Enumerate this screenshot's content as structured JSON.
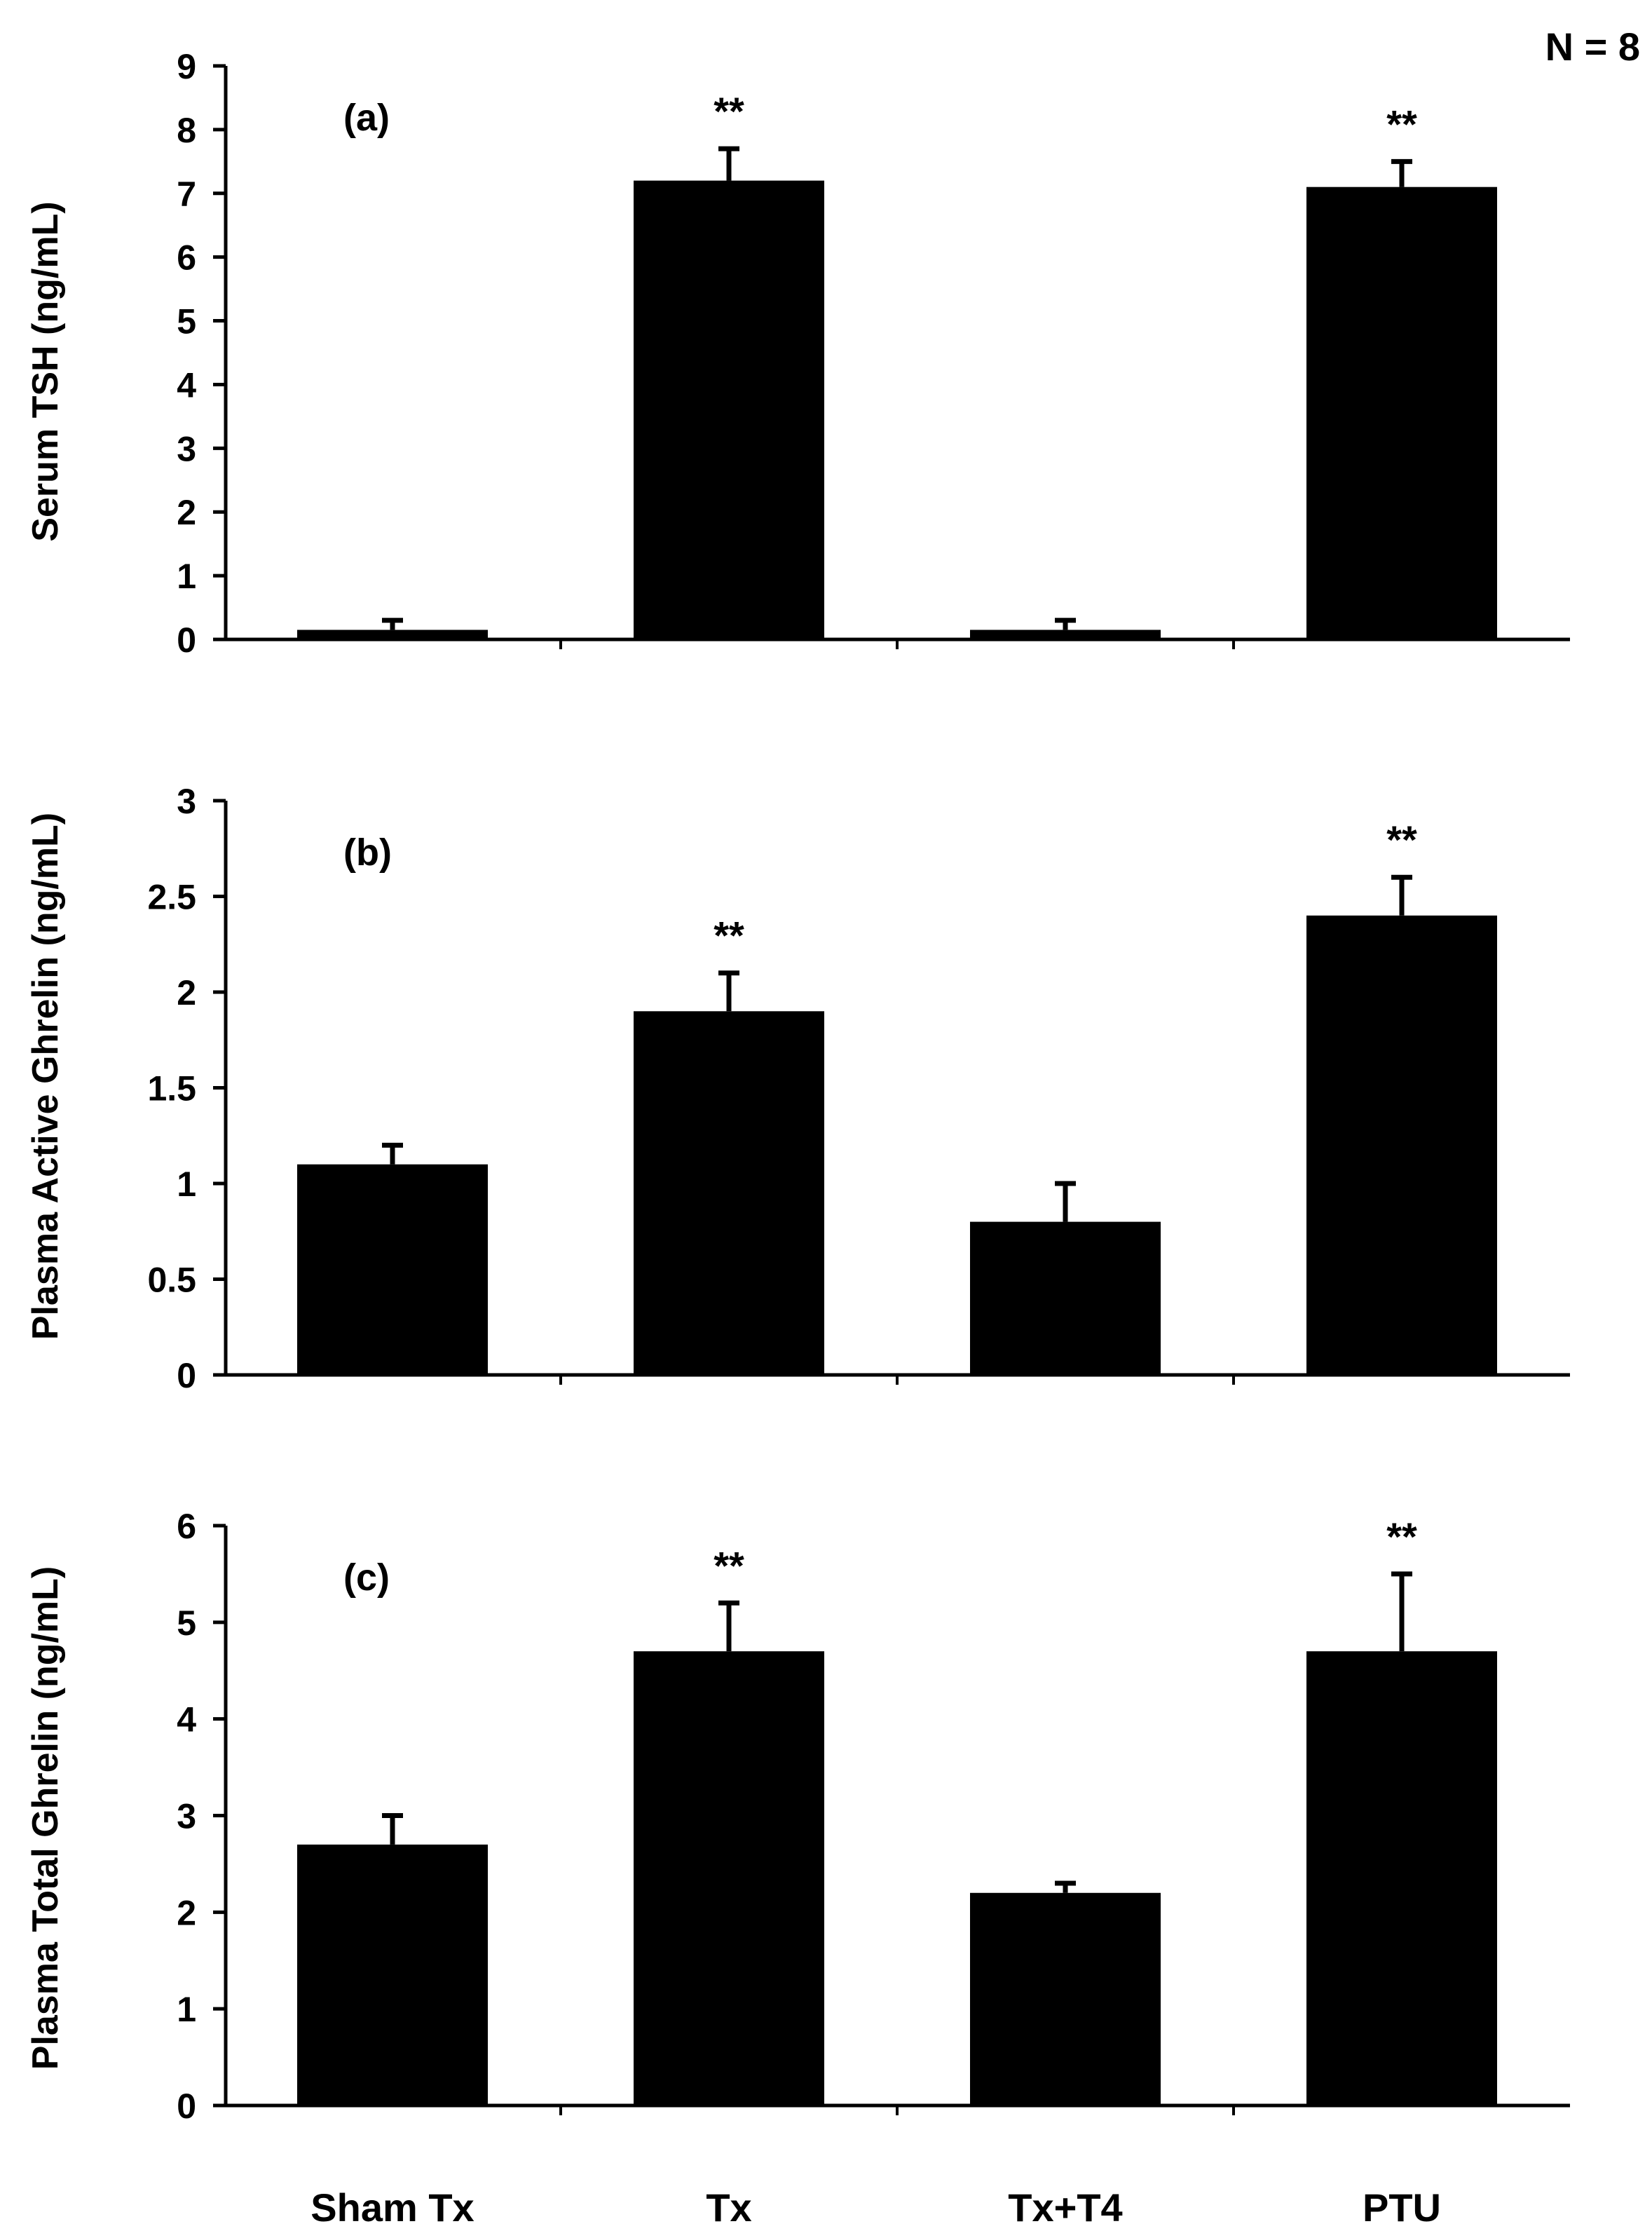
{
  "figure": {
    "n_label": "N = 8",
    "categories": [
      "Sham Tx",
      "Tx",
      "Tx+T4",
      "PTU"
    ]
  },
  "chart_data": [
    {
      "type": "bar",
      "panel": "(a)",
      "ylabel": "Serum TSH (ng/mL)",
      "ylim": [
        0,
        9
      ],
      "yticks": [
        0,
        1,
        2,
        3,
        4,
        5,
        6,
        7,
        8,
        9
      ],
      "ytick_labels": [
        "0",
        "1",
        "2",
        "3",
        "4",
        "5",
        "6",
        "7",
        "8",
        "9"
      ],
      "categories": [
        "Sham Tx",
        "Tx",
        "Tx+T4",
        "PTU"
      ],
      "values": [
        0.15,
        7.2,
        0.15,
        7.1
      ],
      "errors": [
        0.15,
        0.5,
        0.15,
        0.4
      ],
      "significance": [
        "",
        "**",
        "",
        "**"
      ]
    },
    {
      "type": "bar",
      "panel": "(b)",
      "ylabel": "Plasma Active Ghrelin (ng/mL)",
      "ylim": [
        0,
        3
      ],
      "yticks": [
        0,
        0.5,
        1,
        1.5,
        2,
        2.5,
        3
      ],
      "ytick_labels": [
        "0",
        "0.5",
        "1",
        "1.5",
        "2",
        "2.5",
        "3"
      ],
      "categories": [
        "Sham Tx",
        "Tx",
        "Tx+T4",
        "PTU"
      ],
      "values": [
        1.1,
        1.9,
        0.8,
        2.4
      ],
      "errors": [
        0.1,
        0.2,
        0.2,
        0.2
      ],
      "significance": [
        "",
        "**",
        "",
        "**"
      ]
    },
    {
      "type": "bar",
      "panel": "(c)",
      "ylabel": "Plasma Total Ghrelin (ng/mL)",
      "ylim": [
        0,
        6
      ],
      "yticks": [
        0,
        1,
        2,
        3,
        4,
        5,
        6
      ],
      "ytick_labels": [
        "0",
        "1",
        "2",
        "3",
        "4",
        "5",
        "6"
      ],
      "categories": [
        "Sham Tx",
        "Tx",
        "Tx+T4",
        "PTU"
      ],
      "values": [
        2.7,
        4.7,
        2.2,
        4.7
      ],
      "errors": [
        0.3,
        0.5,
        0.1,
        0.8
      ],
      "significance": [
        "",
        "**",
        "",
        "**"
      ]
    }
  ]
}
